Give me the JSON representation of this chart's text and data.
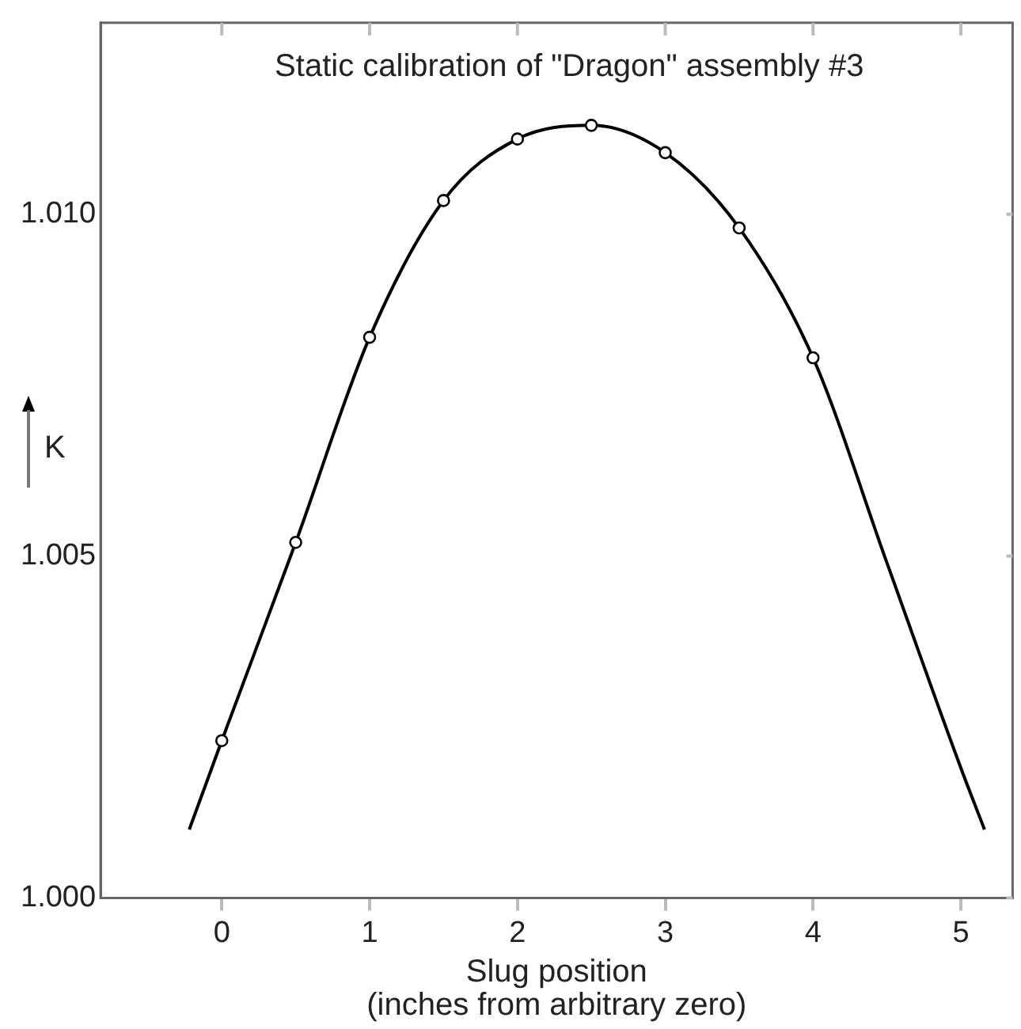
{
  "chart_data": {
    "type": "scatter",
    "title": "Static calibration of \"Dragon\" assembly #3",
    "xlabel": "Slug position\n(inches from arbitrary zero)",
    "ylabel": "K",
    "series": [
      {
        "type": "line",
        "color": "#000000",
        "marker": "none",
        "x": [
          -0.22,
          0,
          0.5,
          1,
          1.5,
          2,
          2.5,
          3,
          3.5,
          4,
          4.5,
          5,
          5.16
        ],
        "values": [
          1.001,
          1.0023,
          1.0052,
          1.0082,
          1.0102,
          1.0111,
          1.0113,
          1.0109,
          1.0098,
          1.0079,
          1.0049,
          1.0019,
          1.001
        ]
      },
      {
        "type": "scatter",
        "color": "#000000",
        "marker": "circle",
        "x": [
          0,
          0.5,
          1,
          1.5,
          2,
          2.5,
          3,
          3.5,
          4
        ],
        "values": [
          1.0023,
          1.0052,
          1.0082,
          1.0102,
          1.0111,
          1.0113,
          1.0109,
          1.0098,
          1.0079
        ]
      }
    ],
    "xlim": [
      -0.82,
      5.35
    ],
    "xticks": [
      0,
      1,
      2,
      3,
      4,
      5
    ],
    "ylim": [
      1.0,
      1.0128
    ],
    "yticks": [
      {
        "value": 1.0,
        "label": "1.000"
      },
      {
        "value": 1.005,
        "label": "1.005"
      },
      {
        "value": 1.01,
        "label": "1.010"
      }
    ],
    "grid": false,
    "legend": false
  }
}
